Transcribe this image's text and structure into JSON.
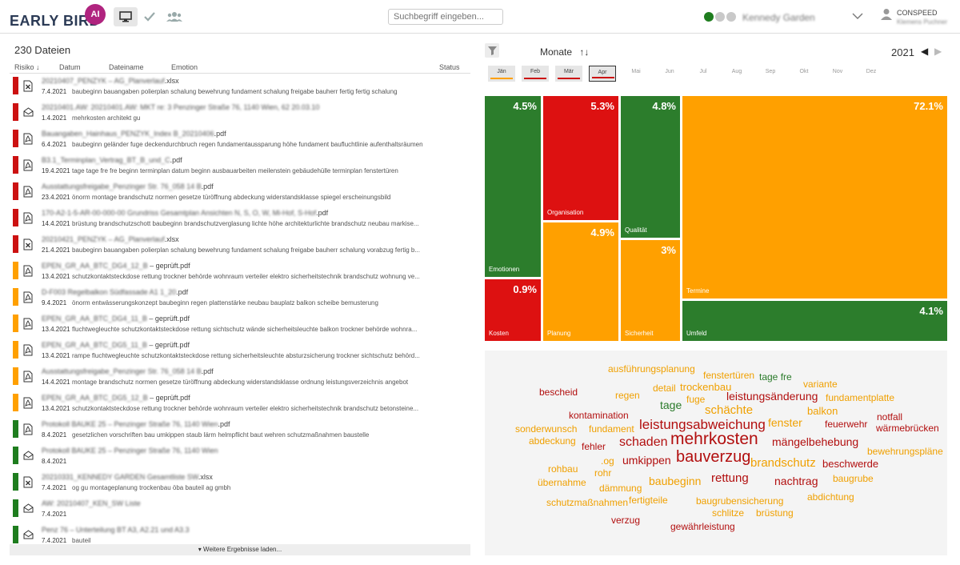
{
  "app": {
    "logo_text": "EARLY BIRD",
    "logo_ai": "AI",
    "search_placeholder": "Suchbegriff eingeben...",
    "project_name": "Kennedy Garden",
    "status_dots": [
      "#1e7d1e",
      "#c9c9c9",
      "#c9c9c9"
    ],
    "user_company": "CONSPEED",
    "user_name": "Klemens Puchner"
  },
  "files": {
    "count_label": "230 Dateien",
    "columns": {
      "risk": "Risiko",
      "date": "Datum",
      "name": "Dateiname",
      "emotion": "Emotion",
      "status": "Status"
    },
    "load_more": "Weitere Ergebnisse laden...",
    "rows": [
      {
        "risk_color": "#cc1111",
        "icon": "excel-file-icon",
        "name_hidden": "20210407_PENZYK – AG_Planverlauf",
        "ext": ".xlsx",
        "date": "7.4.2021",
        "desc": "baubeginn bauangaben polierplan schalung bewehrung fundament schalung freigabe bauherr fertig fertig schalung"
      },
      {
        "risk_color": "#cc1111",
        "icon": "mail-icon",
        "name_hidden": "20210401.AW: 20210401.AW: MKT re: 3 Penzinger Straße 76, 1140 Wien, 62 20.03.10",
        "ext": "",
        "date": "1.4.2021",
        "desc": "mehrkosten architekt gu"
      },
      {
        "risk_color": "#cc1111",
        "icon": "pdf-file-icon",
        "name_hidden": "Bauangaben_Hainhaus_PENZYK_Index B_20210406",
        "ext": ".pdf",
        "date": "6.4.2021",
        "desc": "baubeginn geländer fuge deckendurchbruch regen fundamentaussparung höhe fundament baufluchtlinie aufenthaltsräumen"
      },
      {
        "risk_color": "#cc1111",
        "icon": "pdf-file-icon",
        "name_hidden": "B3.1_Terminplan_Vertrag_BT_B_und_C",
        "ext": ".pdf",
        "date": "19.4.2021",
        "desc": "tage tage fre fre beginn terminplan datum beginn ausbauarbeiten meilenstein gebäudehülle terminplan fenstertüren"
      },
      {
        "risk_color": "#cc1111",
        "icon": "pdf-file-icon",
        "name_hidden": "Ausstattungsfreigabe_Penzinger Str. 76_058 14 B",
        "ext": ".pdf",
        "date": "23.4.2021",
        "desc": "önorm montage brandschutz normen gesetze türöffnung abdeckung widerstandsklasse spiegel erscheinungsbild"
      },
      {
        "risk_color": "#cc1111",
        "icon": "pdf-file-icon",
        "name_hidden": "170-A2-1-5-AR-00-000-00 Grundriss Gesamtplan Ansichten N, S, O, W, Mi-Hof, S-Hof",
        "ext": ".pdf",
        "date": "14.4.2021",
        "desc": "brüstung brandschutzschott baubeginn brandschutzverglasung lichte höhe architekturlichte brandschutz neubau markise..."
      },
      {
        "risk_color": "#cc1111",
        "icon": "excel-file-icon",
        "name_hidden": "20210421_PENZYK – AG_Planverlauf",
        "ext": ".xlsx",
        "date": "21.4.2021",
        "desc": "baubeginn bauangaben polierplan schalung bewehrung fundament schalung freigabe bauherr schalung vorabzug fertig b..."
      },
      {
        "risk_color": "#ffa000",
        "icon": "pdf-file-icon",
        "name_hidden": "EPEN_GR_AA_BTC_DG4_12_B",
        "ext": " – geprüft.pdf",
        "date": "13.4.2021",
        "desc": "schutzkontaktsteckdose rettung trockner behörde wohnraum verteiler elektro sicherheitstechnik brandschutz wohnung ve..."
      },
      {
        "risk_color": "#ffa000",
        "icon": "pdf-file-icon",
        "name_hidden": "D-F003 Regelbalkon Südfassade A1 1_20",
        "ext": ".pdf",
        "date": "9.4.2021",
        "desc": "önorm entwässerungskonzept baubeginn regen plattenstärke neubau bauplatz balkon scheibe bemusterung"
      },
      {
        "risk_color": "#ffa000",
        "icon": "pdf-file-icon",
        "name_hidden": "EPEN_GR_AA_BTC_DG4_11_B",
        "ext": " – geprüft.pdf",
        "date": "13.4.2021",
        "desc": "fluchtwegleuchte schutzkontaktsteckdose rettung sichtschutz wände sicherheitsleuchte balkon trockner behörde wohnra..."
      },
      {
        "risk_color": "#ffa000",
        "icon": "pdf-file-icon",
        "name_hidden": "EPEN_GR_AA_BTC_DG5_11_B",
        "ext": " – geprüft.pdf",
        "date": "13.4.2021",
        "desc": "rampe fluchtwegleuchte schutzkontaktsteckdose rettung sicherheitsleuchte absturzsicherung trockner sichtschutz behörd..."
      },
      {
        "risk_color": "#ffa000",
        "icon": "pdf-file-icon",
        "name_hidden": "Ausstattungsfreigabe_Penzinger Str. 76_058 14 B",
        "ext": ".pdf",
        "date": "14.4.2021",
        "desc": "montage brandschutz normen gesetze türöffnung abdeckung widerstandsklasse ordnung leistungsverzeichnis angebot"
      },
      {
        "risk_color": "#ffa000",
        "icon": "pdf-file-icon",
        "name_hidden": "EPEN_GR_AA_BTC_DG5_12_B",
        "ext": " – geprüft.pdf",
        "date": "13.4.2021",
        "desc": "schutzkontaktsteckdose rettung trockner behörde wohnraum verteiler elektro sicherheitstechnik brandschutz betonsteine..."
      },
      {
        "risk_color": "#1e7d1e",
        "icon": "pdf-file-icon",
        "name_hidden": "Protokoll BAUKE 25 – Penzinger Straße 76, 1140 Wien",
        "ext": ".pdf",
        "date": "8.4.2021",
        "desc": "gesetzlichen vorschriften bau umkippen staub lärm helmpflicht baut wehren schutzmaßnahmen baustelle"
      },
      {
        "risk_color": "#1e7d1e",
        "icon": "mail-icon",
        "name_hidden": "Protokoll BAUKE 25 – Penzinger Straße 76, 1140 Wien",
        "ext": "",
        "date": "8.4.2021",
        "desc": ""
      },
      {
        "risk_color": "#1e7d1e",
        "icon": "excel-file-icon",
        "name_hidden": "20210331_KENNEDY GARDEN Gesamtliste SW",
        "ext": ".xlsx",
        "date": "7.4.2021",
        "desc": "og gu montageplanung trockenbau öba bauteil ag gmbh"
      },
      {
        "risk_color": "#1e7d1e",
        "icon": "mail-icon",
        "name_hidden": "AW: 20210407_KEN_SW Liste",
        "ext": "",
        "date": "7.4.2021",
        "desc": ""
      },
      {
        "risk_color": "#1e7d1e",
        "icon": "mail-icon",
        "name_hidden": "Penz 76 – Unterteilung BT A3, A2.21 und A3.3",
        "ext": "",
        "date": "7.4.2021",
        "desc": "bauteil"
      }
    ]
  },
  "timeline": {
    "label": "Monate",
    "year": "2021",
    "months": [
      {
        "label": "Jän",
        "has_data": true,
        "color": "#ffa000",
        "selected": false
      },
      {
        "label": "Feb",
        "has_data": true,
        "color": "#cc1111",
        "selected": false
      },
      {
        "label": "Mär",
        "has_data": true,
        "color": "#cc1111",
        "selected": false
      },
      {
        "label": "Apr",
        "has_data": true,
        "color": "#cc1111",
        "selected": true
      },
      {
        "label": "Mai",
        "has_data": false
      },
      {
        "label": "Jun",
        "has_data": false
      },
      {
        "label": "Jul",
        "has_data": false
      },
      {
        "label": "Aug",
        "has_data": false
      },
      {
        "label": "Sep",
        "has_data": false
      },
      {
        "label": "Okt",
        "has_data": false
      },
      {
        "label": "Nov",
        "has_data": false
      },
      {
        "label": "Dez",
        "has_data": false
      }
    ]
  },
  "treemap": {
    "tiles": [
      {
        "label": "Emotionen",
        "pct": "4.5%",
        "value": 4.5,
        "color": "#2c7d2c"
      },
      {
        "label": "Kosten",
        "pct": "0.9%",
        "value": 0.9,
        "color": "#dd1111"
      },
      {
        "label": "Organisation",
        "pct": "5.3%",
        "value": 5.3,
        "color": "#dd1111"
      },
      {
        "label": "Planung",
        "pct": "4.9%",
        "value": 4.9,
        "color": "#ffa000"
      },
      {
        "label": "Qualität",
        "pct": "4.8%",
        "value": 4.8,
        "color": "#2c7d2c"
      },
      {
        "label": "Sicherheit",
        "pct": "3%",
        "value": 3.0,
        "color": "#ffa000"
      },
      {
        "label": "Termine",
        "pct": "72.1%",
        "value": 72.1,
        "color": "#ffa000"
      },
      {
        "label": "Umfeld",
        "pct": "4.1%",
        "value": 4.1,
        "color": "#2c7d2c"
      }
    ]
  },
  "wordcloud": {
    "words": [
      {
        "text": "ausführungsplanung",
        "color": "orange"
      },
      {
        "text": "fenstertüren",
        "color": "orange"
      },
      {
        "text": "tage fre",
        "color": "green"
      },
      {
        "text": "bescheid",
        "color": "red"
      },
      {
        "text": "regen",
        "color": "orange"
      },
      {
        "text": "detail",
        "color": "orange"
      },
      {
        "text": "trockenbau",
        "color": "orange"
      },
      {
        "text": "variante",
        "color": "orange"
      },
      {
        "text": "fuge",
        "color": "orange"
      },
      {
        "text": "leistungsänderung",
        "color": "red"
      },
      {
        "text": "fundamentplatte",
        "color": "orange"
      },
      {
        "text": "tage",
        "color": "green"
      },
      {
        "text": "schächte",
        "color": "orange"
      },
      {
        "text": "balkon",
        "color": "orange"
      },
      {
        "text": "kontamination",
        "color": "red"
      },
      {
        "text": "notfall",
        "color": "red"
      },
      {
        "text": "fenster",
        "color": "orange"
      },
      {
        "text": "feuerwehr",
        "color": "red"
      },
      {
        "text": "wärmebrücken",
        "color": "red"
      },
      {
        "text": "sonderwunsch",
        "color": "orange"
      },
      {
        "text": "fundament",
        "color": "orange"
      },
      {
        "text": "leistungsabweichung",
        "color": "red"
      },
      {
        "text": "abdeckung",
        "color": "orange"
      },
      {
        "text": "mängelbehebung",
        "color": "red"
      },
      {
        "text": "fehler",
        "color": "red"
      },
      {
        "text": "schaden",
        "color": "red"
      },
      {
        "text": "mehrkosten",
        "color": "red"
      },
      {
        "text": "bewehrungspläne",
        "color": "orange"
      },
      {
        "text": ".og",
        "color": "orange"
      },
      {
        "text": "umkippen",
        "color": "red"
      },
      {
        "text": "bauverzug",
        "color": "red"
      },
      {
        "text": "brandschutz",
        "color": "orange"
      },
      {
        "text": "beschwerde",
        "color": "red"
      },
      {
        "text": "rohbau",
        "color": "orange"
      },
      {
        "text": "rohr",
        "color": "orange"
      },
      {
        "text": "baubeginn",
        "color": "orange"
      },
      {
        "text": "rettung",
        "color": "red"
      },
      {
        "text": "nachtrag",
        "color": "red"
      },
      {
        "text": "baugrube",
        "color": "orange"
      },
      {
        "text": "übernahme",
        "color": "orange"
      },
      {
        "text": "dämmung",
        "color": "orange"
      },
      {
        "text": "abdichtung",
        "color": "orange"
      },
      {
        "text": "schutzmaßnahmen",
        "color": "orange"
      },
      {
        "text": "fertigteile",
        "color": "orange"
      },
      {
        "text": "baugrubensicherung",
        "color": "orange"
      },
      {
        "text": "schlitze",
        "color": "orange"
      },
      {
        "text": "brüstung",
        "color": "orange"
      },
      {
        "text": "verzug",
        "color": "red"
      },
      {
        "text": "gewährleistung",
        "color": "red"
      }
    ]
  }
}
